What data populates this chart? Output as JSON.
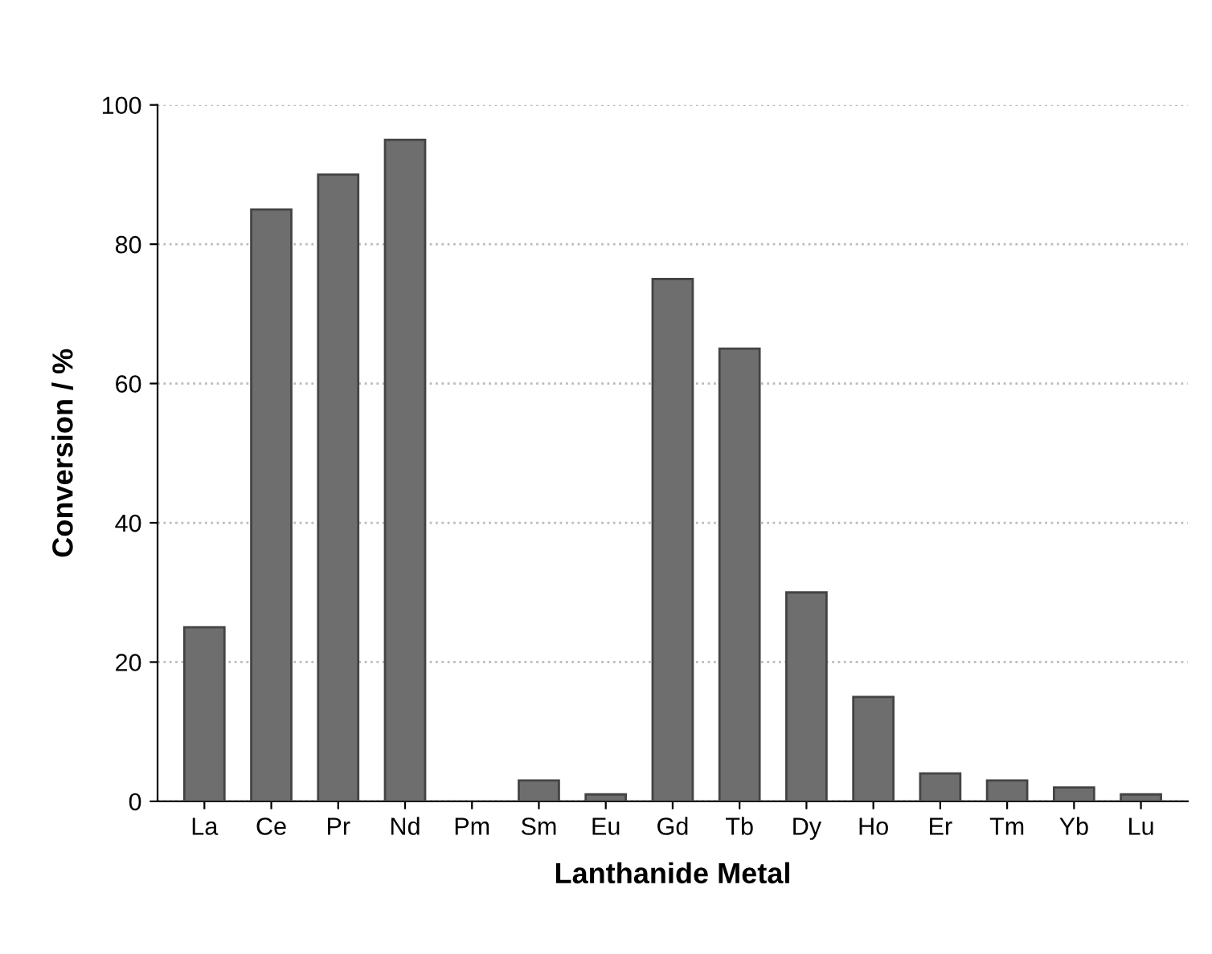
{
  "chart_data": {
    "type": "bar",
    "xlabel": "Lanthanide Metal",
    "ylabel": "Conversion / %",
    "categories": [
      "La",
      "Ce",
      "Pr",
      "Nd",
      "Pm",
      "Sm",
      "Eu",
      "Gd",
      "Tb",
      "Dy",
      "Ho",
      "Er",
      "Tm",
      "Yb",
      "Lu"
    ],
    "values": [
      25,
      85,
      90,
      95,
      0,
      3,
      1,
      75,
      65,
      30,
      15,
      4,
      3,
      2,
      1
    ],
    "color": "#6e6e6e",
    "ylim": [
      0,
      100
    ],
    "yticks": [
      0,
      20,
      40,
      60,
      80,
      100
    ],
    "grid": "y"
  }
}
